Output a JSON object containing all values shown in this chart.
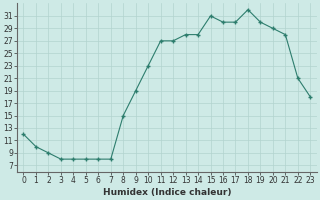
{
  "x": [
    0,
    1,
    2,
    3,
    4,
    5,
    6,
    7,
    8,
    9,
    10,
    11,
    12,
    13,
    14,
    15,
    16,
    17,
    18,
    19,
    20,
    21,
    22,
    23
  ],
  "y": [
    12,
    10,
    9,
    8,
    8,
    8,
    8,
    8,
    15,
    19,
    23,
    27,
    27,
    28,
    28,
    31,
    30,
    30,
    32,
    30,
    29,
    28,
    21,
    18
  ],
  "line_color": "#2d7d6d",
  "marker": "+",
  "marker_size": 3.5,
  "marker_lw": 1.0,
  "bg_color": "#ceeae6",
  "grid_color": "#b2d4cf",
  "xlabel": "Humidex (Indice chaleur)",
  "xlim": [
    -0.5,
    23.5
  ],
  "ylim": [
    6,
    33
  ],
  "yticks": [
    7,
    9,
    11,
    13,
    15,
    17,
    19,
    21,
    23,
    25,
    27,
    29,
    31
  ],
  "xticks": [
    0,
    1,
    2,
    3,
    4,
    5,
    6,
    7,
    8,
    9,
    10,
    11,
    12,
    13,
    14,
    15,
    16,
    17,
    18,
    19,
    20,
    21,
    22,
    23
  ],
  "xlabel_fontsize": 6.5,
  "tick_fontsize": 5.5,
  "linewidth": 0.8
}
